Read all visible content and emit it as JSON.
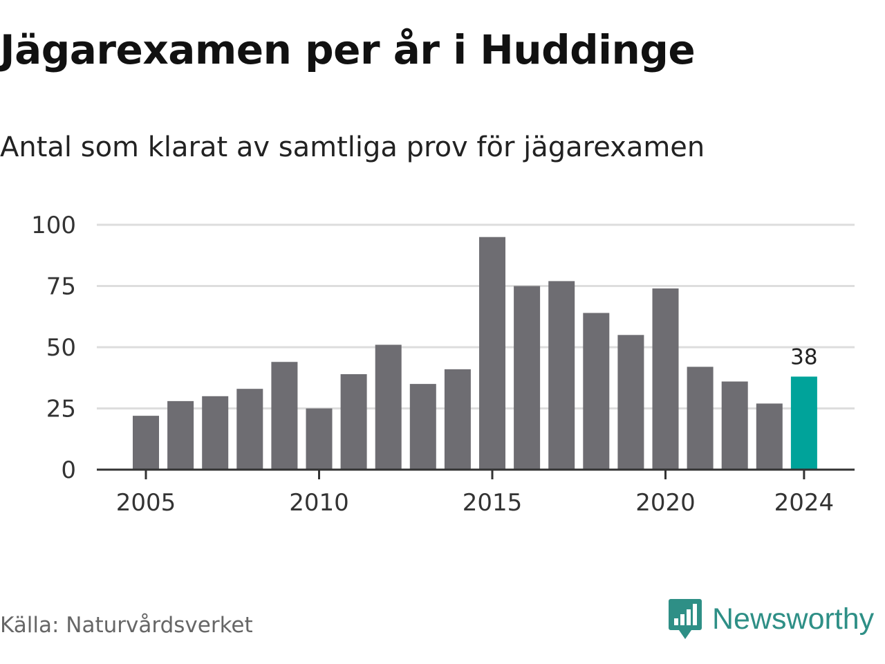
{
  "header": {
    "title": "Jägarexamen per år i Huddinge",
    "subtitle": "Antal som klarat av samtliga prov för jägarexamen"
  },
  "footer": {
    "source": "Källa: Naturvårdsverket",
    "brand": "Newsworthy",
    "brand_icon": "bar-chart-speech-bubble-icon"
  },
  "colors": {
    "bar": "#6e6d72",
    "highlight": "#00a39a",
    "grid": "#dddddd",
    "axis": "#333333",
    "brand": "#2e8f86"
  },
  "chart_data": {
    "type": "bar",
    "title": "Jägarexamen per år i Huddinge",
    "subtitle": "Antal som klarat av samtliga prov för jägarexamen",
    "categories": [
      2005,
      2006,
      2007,
      2008,
      2009,
      2010,
      2011,
      2012,
      2013,
      2014,
      2015,
      2016,
      2017,
      2018,
      2019,
      2020,
      2021,
      2022,
      2023,
      2024
    ],
    "values": [
      22,
      28,
      30,
      33,
      44,
      25,
      39,
      51,
      35,
      41,
      95,
      75,
      77,
      64,
      55,
      74,
      42,
      36,
      27,
      38
    ],
    "highlight_index": 19,
    "highlight_label": "38",
    "x_ticks": [
      2005,
      2010,
      2015,
      2020,
      2024
    ],
    "y_ticks": [
      0,
      25,
      50,
      75,
      100
    ],
    "ylim": [
      0,
      100
    ],
    "grid": true,
    "xlabel": "",
    "ylabel": ""
  }
}
